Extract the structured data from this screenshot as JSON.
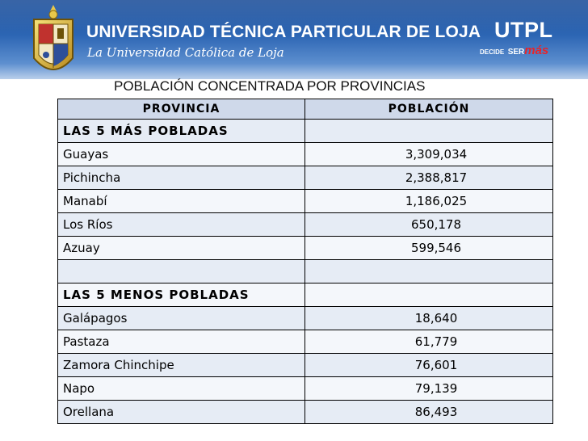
{
  "header": {
    "university_name": "UNIVERSIDAD TÉCNICA PARTICULAR DE LOJA",
    "university_tagline": "La Universidad Católica de Loja",
    "logo_text": "UTPL",
    "slogan_part1": "DECIDE",
    "slogan_part2": "SER",
    "slogan_part3": "más",
    "colors": {
      "banner": "#2d66b4",
      "accent": "#e8242a"
    }
  },
  "title": "POBLACIÓN CONCENTRADA POR PROVINCIAS",
  "table": {
    "columns": [
      "PROVINCIA",
      "POBLACIÓN"
    ],
    "rows": [
      {
        "province": "LAS 5 MÁS POBLADAS",
        "population": ""
      },
      {
        "province": "Guayas",
        "population": "3,309,034"
      },
      {
        "province": "Pichincha",
        "population": "2,388,817"
      },
      {
        "province": "Manabí",
        "population": "1,186,025"
      },
      {
        "province": "Los Ríos",
        "population": "650,178"
      },
      {
        "province": "Azuay",
        "population": "599,546"
      },
      {
        "province": "",
        "population": ""
      },
      {
        "province": "LAS 5 MENOS POBLADAS",
        "population": ""
      },
      {
        "province": "Galápagos",
        "population": "18,640"
      },
      {
        "province": "Pastaza",
        "population": "61,779"
      },
      {
        "province": "Zamora Chinchipe",
        "population": "76,601"
      },
      {
        "province": "Napo",
        "population": "79,139"
      },
      {
        "province": "Orellana",
        "population": "86,493"
      }
    ]
  }
}
